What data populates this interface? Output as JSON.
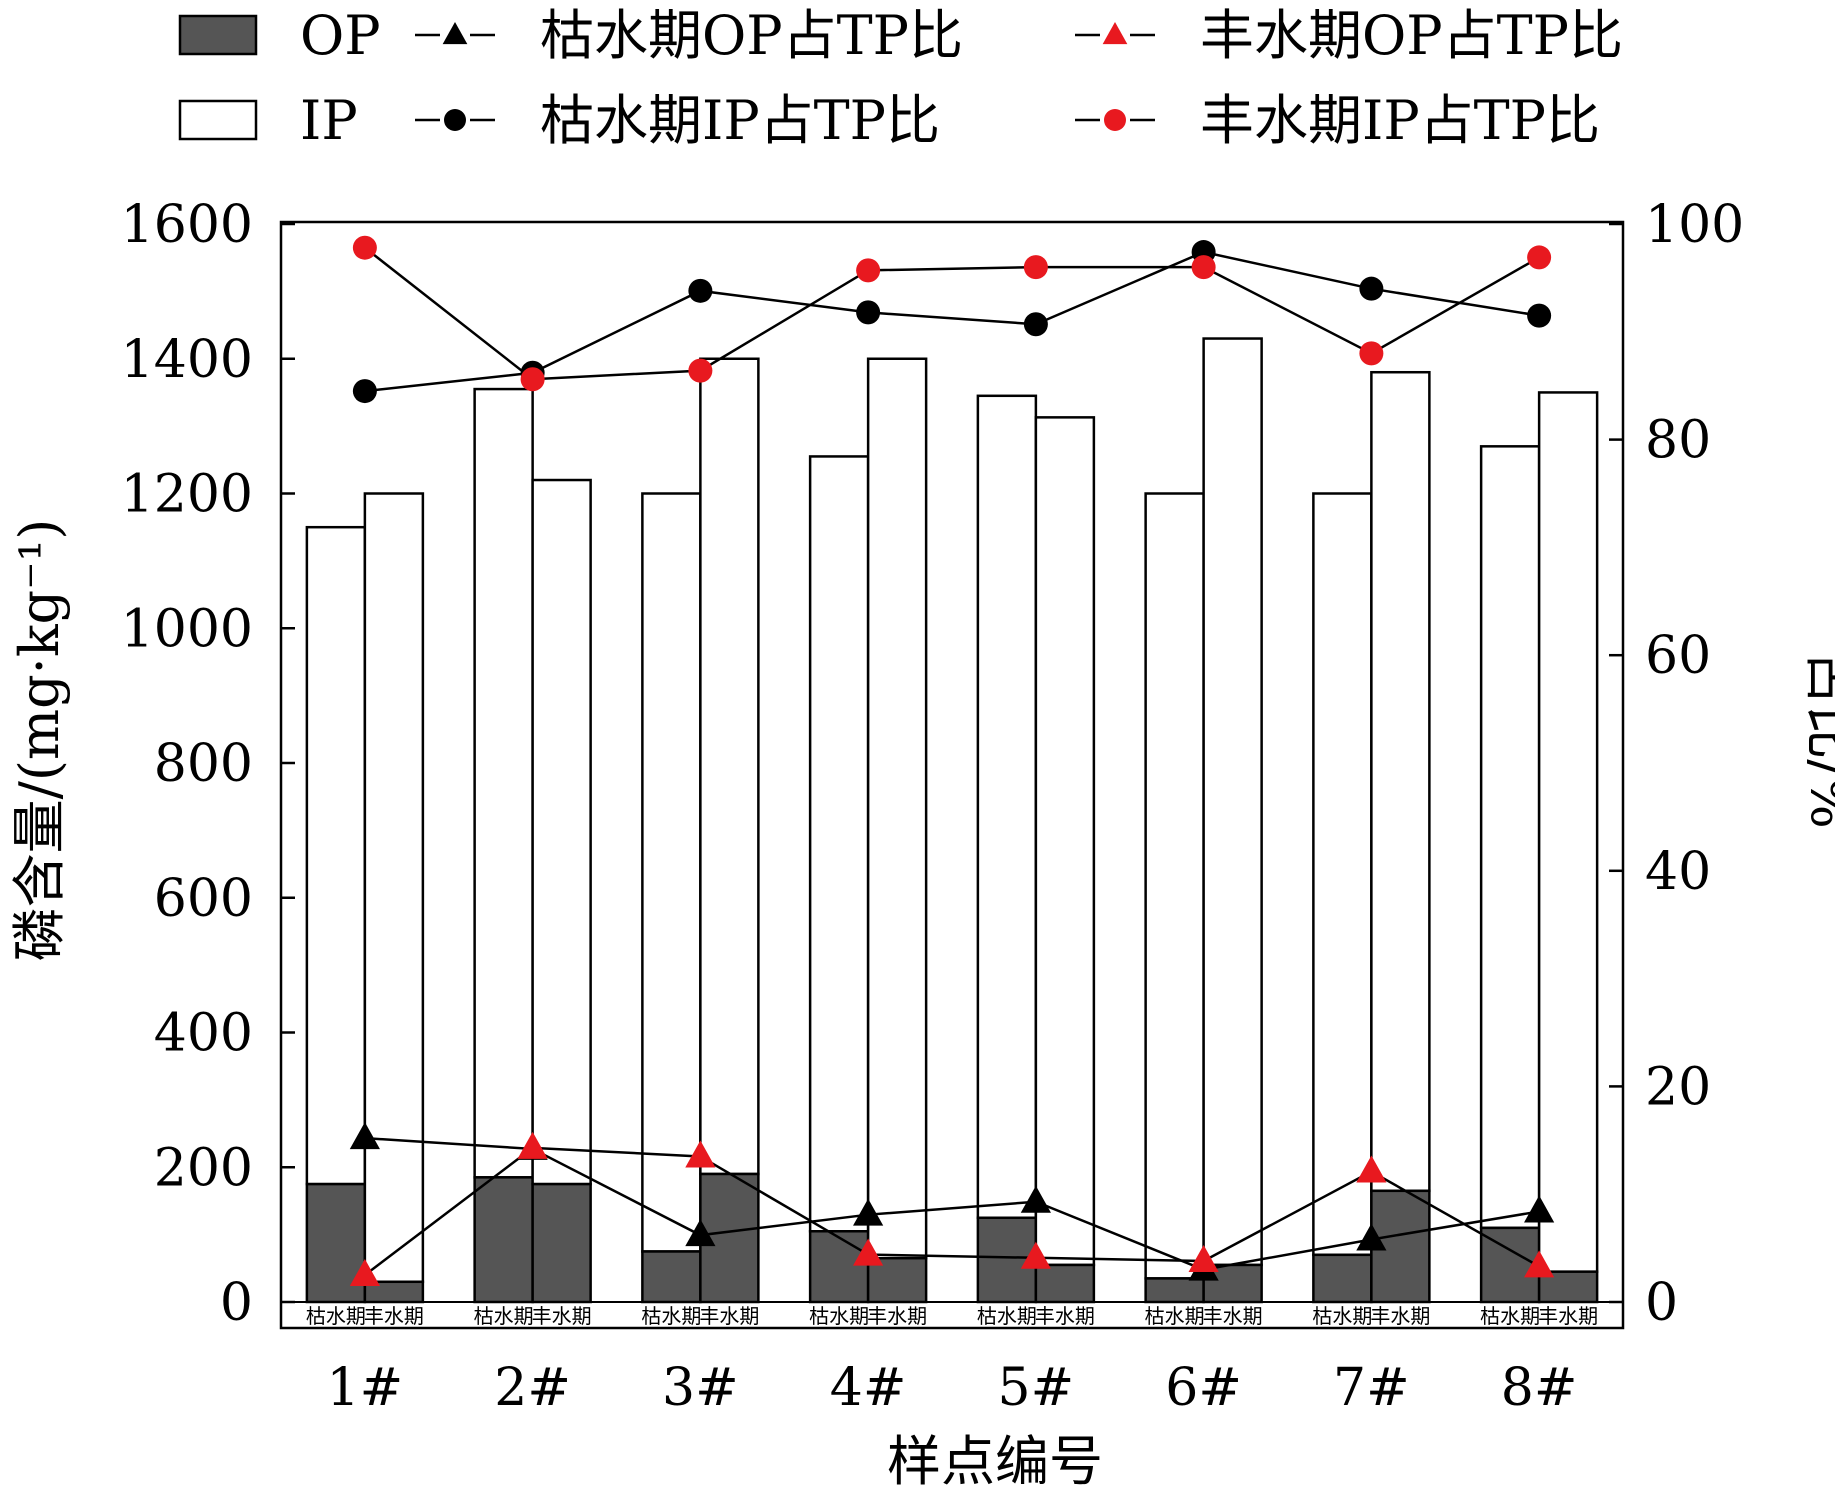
{
  "chart_data": {
    "type": "bar",
    "categories": [
      "1#",
      "2#",
      "3#",
      "4#",
      "5#",
      "6#",
      "7#",
      "8#"
    ],
    "season_labels": [
      "枯水期",
      "丰水期"
    ],
    "bars": {
      "dry": {
        "op": [
          175,
          185,
          75,
          105,
          125,
          35,
          70,
          110
        ],
        "ip": [
          975,
          1170,
          1125,
          1150,
          1220,
          1165,
          1130,
          1160
        ]
      },
      "wet": {
        "op": [
          30,
          175,
          190,
          65,
          55,
          55,
          165,
          45
        ],
        "ip": [
          1170,
          1045,
          1210,
          1335,
          1258,
          1375,
          1215,
          1305
        ]
      }
    },
    "series": [
      {
        "name": "OP",
        "kind": "bar-op",
        "color": "#555555"
      },
      {
        "name": "IP",
        "kind": "bar-ip",
        "color": "#ffffff"
      },
      {
        "name": "枯水期OP占TP比",
        "kind": "line",
        "marker": "triangle",
        "color": "#000000",
        "values": [
          15.2,
          14.2,
          6.2,
          8.1,
          9.3,
          3.0,
          5.8,
          8.4
        ]
      },
      {
        "name": "丰水期OP占TP比",
        "kind": "line",
        "marker": "triangle",
        "color": "#e8191f",
        "values": [
          2.5,
          14.3,
          13.5,
          4.4,
          4.1,
          3.8,
          12.1,
          3.3
        ]
      },
      {
        "name": "枯水期IP占TP比",
        "kind": "line",
        "marker": "circle",
        "color": "#000000",
        "values": [
          84.5,
          86.2,
          93.8,
          91.8,
          90.7,
          97.4,
          94.0,
          91.5
        ]
      },
      {
        "name": "丰水期IP占TP比",
        "kind": "line",
        "marker": "circle",
        "color": "#e8191f",
        "values": [
          97.8,
          85.6,
          86.4,
          95.7,
          96.0,
          96.0,
          88.0,
          96.9
        ]
      }
    ],
    "ylabel": "磷含量/(mg·kg⁻¹)",
    "y2label": "占比/%",
    "xlabel": "样点编号",
    "ylim": [
      0,
      1600
    ],
    "y_ticks": [
      0,
      200,
      400,
      600,
      800,
      1000,
      1200,
      1400,
      1600
    ],
    "y2lim": [
      0,
      100
    ],
    "y2_ticks": [
      0,
      20,
      40,
      60,
      80,
      100
    ],
    "legend": "top"
  }
}
